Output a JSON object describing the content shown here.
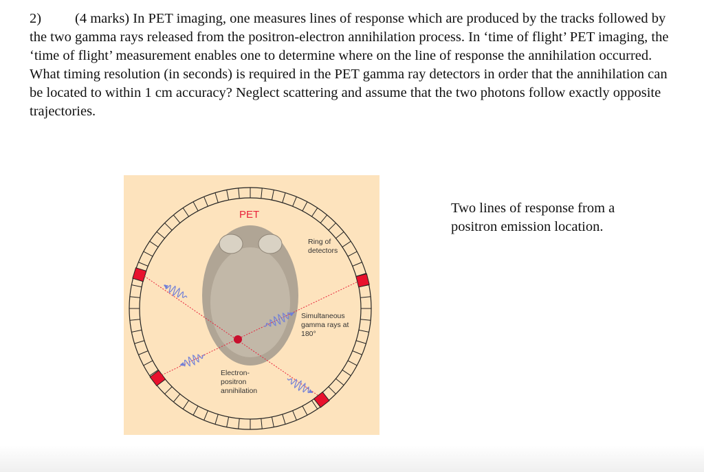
{
  "question": {
    "number": "2)",
    "text": "(4 marks) In PET imaging, one measures lines of response which are produced by the tracks followed by the two gamma rays released from the positron-electron annihilation process. In ‘time of flight’ PET imaging, the ‘time of flight’ measurement enables one to determine where on the line of response the annihilation occurred. What timing resolution (in seconds) is required in the PET gamma ray detectors in order that the annihilation can be located to within 1 cm accuracy? Neglect scattering and assume that the two photons follow exactly opposite trajectories."
  },
  "figure": {
    "title": "PET",
    "ring_label": "Ring of detectors",
    "gamma_label": "Simultaneous gamma rays at 180°",
    "annihilation_label": "Electron-positron annihilation",
    "colors": {
      "background": "#fde3bd",
      "detector_hit": "#e8112d",
      "photon": "#6f7fd8",
      "line": "#e8213a",
      "brain": "#b0a595"
    }
  },
  "caption": "Two lines of response from a positron emission location."
}
